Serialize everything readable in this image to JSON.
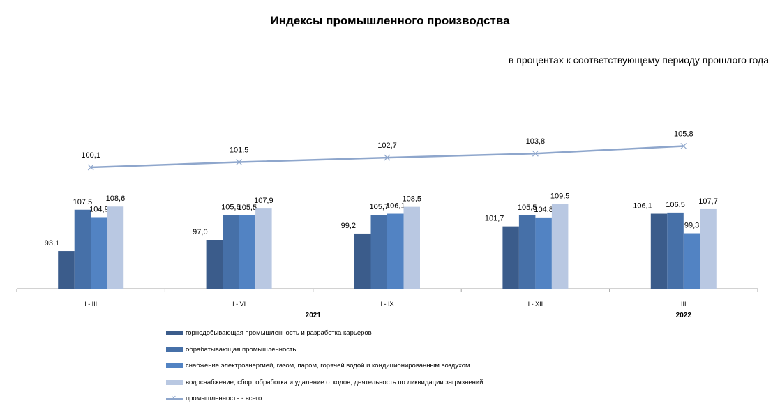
{
  "chart_data": {
    "type": "bar",
    "title": "Индексы промышленного  производства",
    "subtitle": "в процентах к соответствующему периоду прошлого года",
    "categories": [
      "I - III",
      "I - VI",
      "I - IX",
      "I - XII",
      "III"
    ],
    "years": [
      {
        "label": "2021",
        "category_index": 1.5
      },
      {
        "label": "2022",
        "category_index": 4
      }
    ],
    "series": [
      {
        "name": "горнодобывающая промышленность и разработка карьеров",
        "type": "bar",
        "color": "#3b5c8b",
        "values": [
          93.1,
          97.0,
          99.2,
          101.7,
          106.1
        ],
        "labels": [
          "93,1",
          "97,0",
          "99,2",
          "101,7",
          "106,1"
        ]
      },
      {
        "name": "обрабатывающая промышленность",
        "type": "bar",
        "color": "#4670a8",
        "values": [
          107.5,
          105.6,
          105.7,
          105.5,
          106.5
        ],
        "labels": [
          "107,5",
          "105,6",
          "105,7",
          "105,5",
          "106,5"
        ]
      },
      {
        "name": "снабжение электроэнергией, газом, паром, горячей водой и  кондиционированным воздухом",
        "type": "bar",
        "color": "#5283c3",
        "values": [
          104.9,
          105.5,
          106.1,
          104.8,
          99.3
        ],
        "labels": [
          "104,9",
          "105,5",
          "106,1",
          "104,8",
          "99,3"
        ]
      },
      {
        "name": "водоснабжение; сбор, обработка и удаление отходов, деятельность по ликвидации загрязнений",
        "type": "bar",
        "color": "#b9c8e2",
        "values": [
          108.6,
          107.9,
          108.5,
          109.5,
          107.7
        ],
        "labels": [
          "108,6",
          "107,9",
          "108,5",
          "109,5",
          "107,7"
        ]
      },
      {
        "name": "промышленность - всего",
        "type": "line",
        "color": "#8ea6cc",
        "values": [
          100.1,
          101.5,
          102.7,
          103.8,
          105.8
        ],
        "labels": [
          "100,1",
          "101,5",
          "102,7",
          "103,8",
          "105,8"
        ]
      }
    ],
    "grid": false,
    "legend_position": "bottom"
  }
}
